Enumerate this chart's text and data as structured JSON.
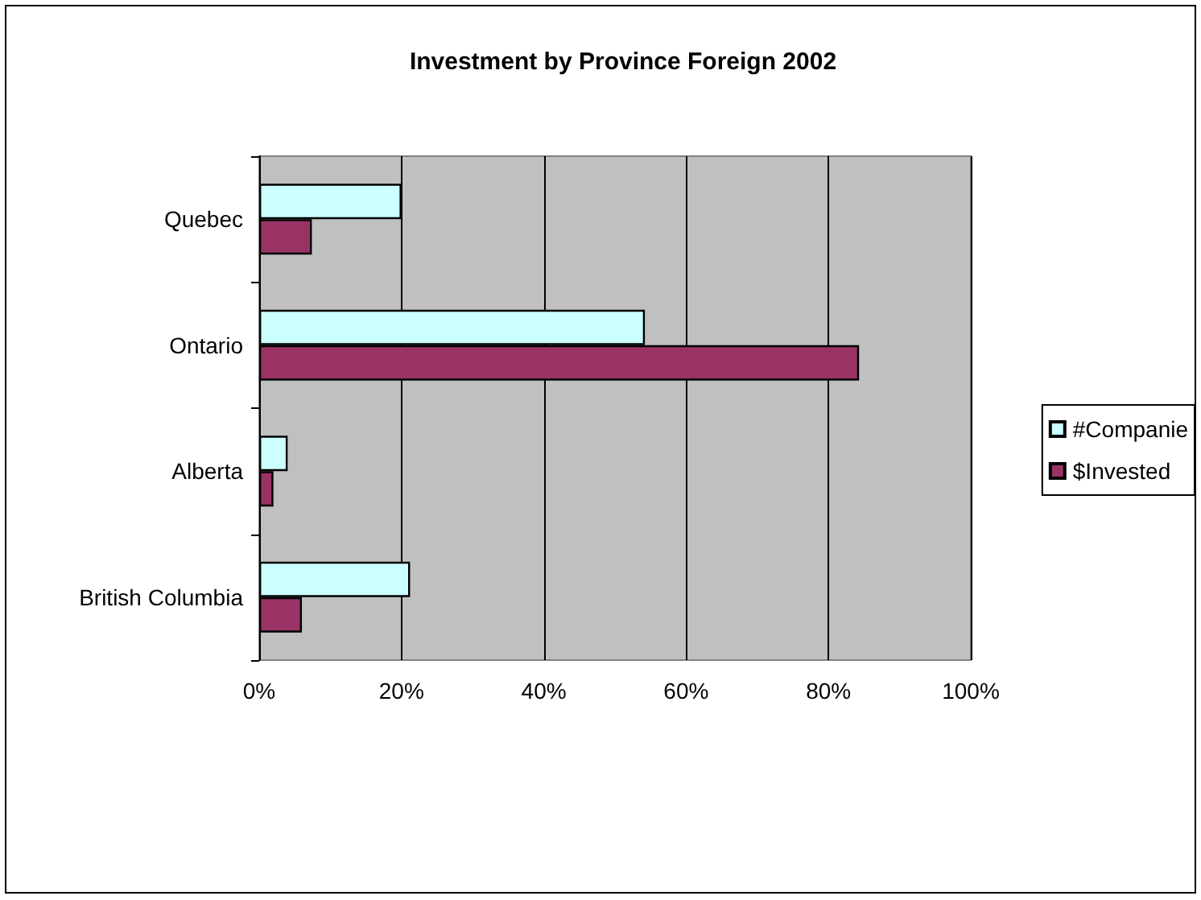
{
  "chart_data": {
    "type": "bar",
    "orientation": "horizontal",
    "title": "Investment by Province Foreign 2002",
    "categories": [
      "Quebec",
      "Ontario",
      "Alberta",
      "British Columbia"
    ],
    "series": [
      {
        "name": "#Companie",
        "color": "#ccffff",
        "values": [
          20,
          54.2,
          4,
          21.2
        ]
      },
      {
        "name": "$Invested",
        "color": "#993366",
        "values": [
          7.4,
          84.3,
          2,
          6
        ]
      }
    ],
    "xlim": [
      0,
      100
    ],
    "xticks": [
      {
        "value": 0,
        "label": "0%"
      },
      {
        "value": 20,
        "label": "20%"
      },
      {
        "value": 40,
        "label": "40%"
      },
      {
        "value": 60,
        "label": "60%"
      },
      {
        "value": 80,
        "label": "80%"
      },
      {
        "value": 100,
        "label": "100%"
      }
    ],
    "grid": "x",
    "legend": "right"
  }
}
